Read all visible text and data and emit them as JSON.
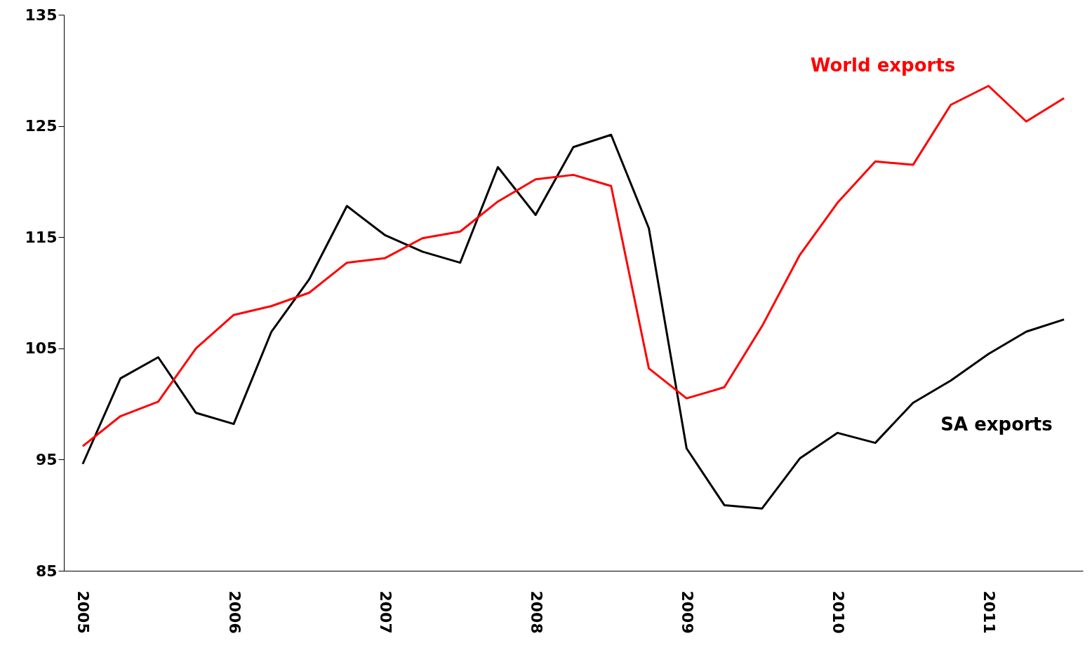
{
  "chart_data": {
    "type": "line",
    "categories": [
      "2005",
      null,
      null,
      null,
      "2006",
      null,
      null,
      null,
      "2007",
      null,
      null,
      null,
      "2008",
      null,
      null,
      null,
      "2009",
      null,
      null,
      null,
      "2010",
      null,
      null,
      null,
      "2011",
      null,
      null
    ],
    "series": [
      {
        "name": "SA exports",
        "color": "#000000",
        "values": [
          94.6,
          102.3,
          104.2,
          99.2,
          98.2,
          106.5,
          111.2,
          117.8,
          115.2,
          113.7,
          112.7,
          121.3,
          117.0,
          123.1,
          124.2,
          115.8,
          96.0,
          90.9,
          90.6,
          95.1,
          97.4,
          96.5,
          100.1,
          102.1,
          104.5,
          106.5,
          107.6
        ]
      },
      {
        "name": "World exports",
        "color": "#ff0000",
        "values": [
          96.2,
          98.9,
          100.2,
          105.0,
          108.0,
          108.8,
          110.0,
          112.7,
          113.1,
          114.9,
          115.5,
          118.2,
          120.2,
          120.6,
          119.6,
          103.2,
          100.5,
          101.5,
          107.0,
          113.4,
          118.1,
          121.8,
          121.5,
          126.9,
          128.6,
          125.4,
          127.5
        ]
      }
    ],
    "ylim": [
      85,
      135
    ],
    "yticks": [
      85,
      95,
      105,
      115,
      125,
      135
    ],
    "grid": false,
    "marker": "none",
    "line_style": "solid"
  }
}
